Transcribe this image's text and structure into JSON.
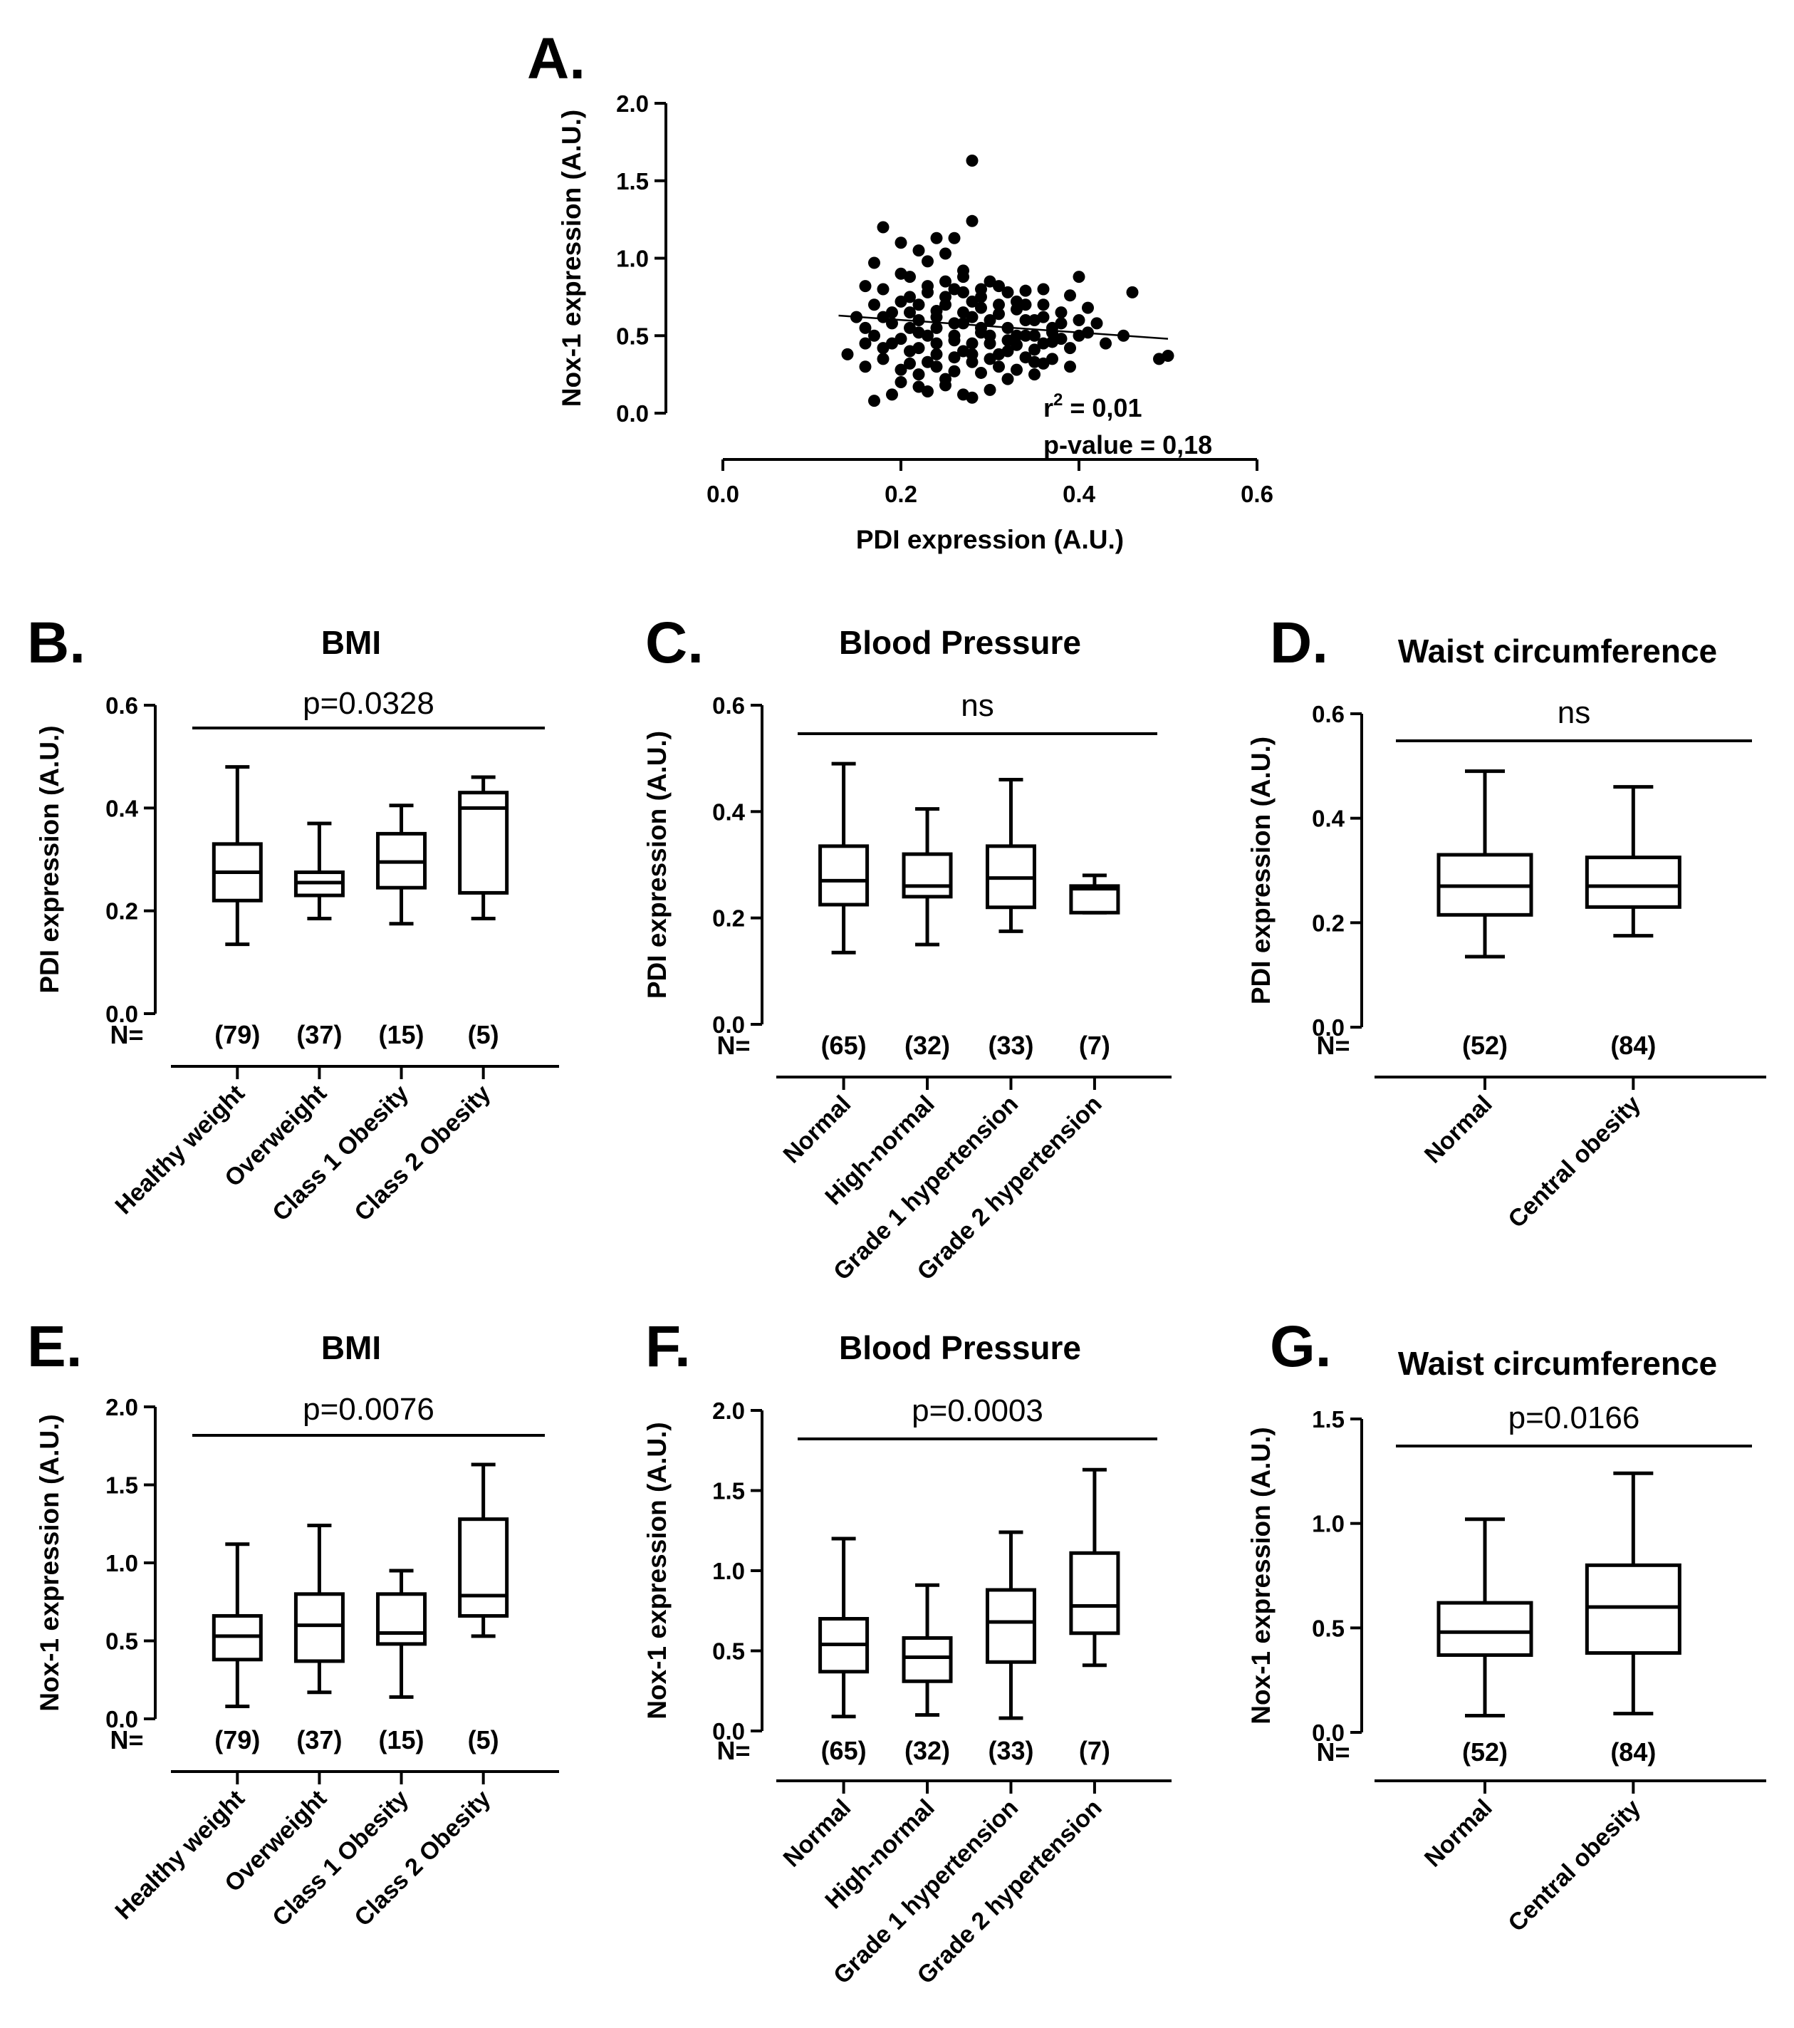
{
  "chart_data": [
    {
      "id": "A",
      "type": "scatter",
      "letter": "A.",
      "xlabel": "PDI expression (A.U.)",
      "ylabel": "Nox-1 expression (A.U.)",
      "xlim": [
        0.0,
        0.6
      ],
      "ylim": [
        0.0,
        2.0
      ],
      "xticks": [
        "0.0",
        "0.2",
        "0.4",
        "0.6"
      ],
      "yticks": [
        "0.0",
        "0.5",
        "1.0",
        "1.5",
        "2.0"
      ],
      "stats": {
        "r2_prefix": "r",
        "r2_sup": "2",
        "r2_rest": " = 0,01",
        "pvalue": "p-value = 0,18"
      },
      "regression": {
        "x": [
          0.13,
          0.5
        ],
        "y": [
          0.63,
          0.48
        ]
      },
      "points": [
        [
          0.28,
          1.63
        ],
        [
          0.28,
          1.24
        ],
        [
          0.18,
          1.2
        ],
        [
          0.2,
          1.1
        ],
        [
          0.24,
          1.13
        ],
        [
          0.26,
          1.13
        ],
        [
          0.22,
          1.05
        ],
        [
          0.17,
          0.97
        ],
        [
          0.25,
          1.03
        ],
        [
          0.23,
          0.98
        ],
        [
          0.2,
          0.9
        ],
        [
          0.27,
          0.92
        ],
        [
          0.3,
          0.85
        ],
        [
          0.4,
          0.88
        ],
        [
          0.46,
          0.78
        ],
        [
          0.16,
          0.82
        ],
        [
          0.18,
          0.8
        ],
        [
          0.21,
          0.75
        ],
        [
          0.23,
          0.78
        ],
        [
          0.26,
          0.8
        ],
        [
          0.29,
          0.75
        ],
        [
          0.31,
          0.82
        ],
        [
          0.34,
          0.79
        ],
        [
          0.36,
          0.8
        ],
        [
          0.39,
          0.76
        ],
        [
          0.15,
          0.62
        ],
        [
          0.17,
          0.7
        ],
        [
          0.19,
          0.65
        ],
        [
          0.2,
          0.72
        ],
        [
          0.22,
          0.6
        ],
        [
          0.24,
          0.66
        ],
        [
          0.25,
          0.7
        ],
        [
          0.27,
          0.58
        ],
        [
          0.28,
          0.72
        ],
        [
          0.3,
          0.6
        ],
        [
          0.32,
          0.55
        ],
        [
          0.33,
          0.67
        ],
        [
          0.35,
          0.5
        ],
        [
          0.36,
          0.62
        ],
        [
          0.37,
          0.55
        ],
        [
          0.38,
          0.48
        ],
        [
          0.4,
          0.6
        ],
        [
          0.41,
          0.52
        ],
        [
          0.42,
          0.58
        ],
        [
          0.17,
          0.5
        ],
        [
          0.19,
          0.45
        ],
        [
          0.21,
          0.55
        ],
        [
          0.22,
          0.42
        ],
        [
          0.23,
          0.5
        ],
        [
          0.24,
          0.38
        ],
        [
          0.26,
          0.47
        ],
        [
          0.27,
          0.4
        ],
        [
          0.29,
          0.52
        ],
        [
          0.3,
          0.45
        ],
        [
          0.31,
          0.38
        ],
        [
          0.33,
          0.44
        ],
        [
          0.34,
          0.36
        ],
        [
          0.35,
          0.41
        ],
        [
          0.37,
          0.46
        ],
        [
          0.39,
          0.42
        ],
        [
          0.14,
          0.38
        ],
        [
          0.16,
          0.3
        ],
        [
          0.18,
          0.35
        ],
        [
          0.2,
          0.28
        ],
        [
          0.21,
          0.32
        ],
        [
          0.22,
          0.25
        ],
        [
          0.24,
          0.3
        ],
        [
          0.25,
          0.22
        ],
        [
          0.26,
          0.27
        ],
        [
          0.28,
          0.33
        ],
        [
          0.29,
          0.26
        ],
        [
          0.31,
          0.3
        ],
        [
          0.32,
          0.22
        ],
        [
          0.33,
          0.28
        ],
        [
          0.35,
          0.25
        ],
        [
          0.36,
          0.32
        ],
        [
          0.2,
          0.2
        ],
        [
          0.22,
          0.17
        ],
        [
          0.23,
          0.14
        ],
        [
          0.25,
          0.18
        ],
        [
          0.27,
          0.12
        ],
        [
          0.28,
          0.1
        ],
        [
          0.3,
          0.15
        ],
        [
          0.19,
          0.12
        ],
        [
          0.17,
          0.08
        ],
        [
          0.49,
          0.35
        ],
        [
          0.5,
          0.37
        ],
        [
          0.45,
          0.5
        ],
        [
          0.43,
          0.45
        ],
        [
          0.41,
          0.68
        ],
        [
          0.38,
          0.65
        ],
        [
          0.36,
          0.7
        ],
        [
          0.34,
          0.6
        ],
        [
          0.33,
          0.72
        ],
        [
          0.31,
          0.64
        ],
        [
          0.28,
          0.62
        ],
        [
          0.26,
          0.58
        ],
        [
          0.24,
          0.55
        ],
        [
          0.21,
          0.65
        ],
        [
          0.19,
          0.58
        ],
        [
          0.16,
          0.55
        ],
        [
          0.18,
          0.62
        ],
        [
          0.22,
          0.7
        ],
        [
          0.25,
          0.85
        ],
        [
          0.27,
          0.78
        ],
        [
          0.29,
          0.68
        ],
        [
          0.31,
          0.7
        ],
        [
          0.34,
          0.5
        ],
        [
          0.36,
          0.45
        ],
        [
          0.38,
          0.58
        ],
        [
          0.39,
          0.3
        ],
        [
          0.37,
          0.35
        ],
        [
          0.35,
          0.33
        ],
        [
          0.32,
          0.4
        ],
        [
          0.3,
          0.35
        ],
        [
          0.28,
          0.38
        ],
        [
          0.26,
          0.36
        ],
        [
          0.24,
          0.45
        ],
        [
          0.23,
          0.33
        ],
        [
          0.21,
          0.4
        ],
        [
          0.2,
          0.48
        ],
        [
          0.18,
          0.42
        ],
        [
          0.16,
          0.45
        ],
        [
          0.27,
          0.65
        ],
        [
          0.29,
          0.55
        ],
        [
          0.33,
          0.5
        ],
        [
          0.26,
          0.5
        ],
        [
          0.24,
          0.62
        ],
        [
          0.22,
          0.52
        ],
        [
          0.28,
          0.45
        ],
        [
          0.3,
          0.5
        ],
        [
          0.32,
          0.47
        ],
        [
          0.35,
          0.6
        ],
        [
          0.37,
          0.52
        ],
        [
          0.4,
          0.5
        ],
        [
          0.21,
          0.88
        ],
        [
          0.23,
          0.82
        ],
        [
          0.25,
          0.75
        ],
        [
          0.27,
          0.88
        ],
        [
          0.29,
          0.8
        ],
        [
          0.32,
          0.78
        ],
        [
          0.34,
          0.7
        ]
      ]
    },
    {
      "id": "B",
      "type": "box",
      "letter": "B.",
      "title": "BMI",
      "ylabel": "PDI expression (A.U.)",
      "ylim": [
        0,
        0.6
      ],
      "yticks": [
        "0.0",
        "0.2",
        "0.4",
        "0.6"
      ],
      "sig": "p=0.0328",
      "n_label": "N=",
      "categories": [
        "Healthy weight",
        "Overweight",
        "Class 1 Obesity",
        "Class 2 Obesity"
      ],
      "n": [
        "(79)",
        "(37)",
        "(15)",
        "(5)"
      ],
      "boxes": [
        {
          "min": 0.135,
          "q1": 0.22,
          "median": 0.275,
          "q3": 0.33,
          "max": 0.48
        },
        {
          "min": 0.185,
          "q1": 0.23,
          "median": 0.255,
          "q3": 0.275,
          "max": 0.37
        },
        {
          "min": 0.175,
          "q1": 0.245,
          "median": 0.295,
          "q3": 0.35,
          "max": 0.405
        },
        {
          "min": 0.185,
          "q1": 0.235,
          "median": 0.4,
          "q3": 0.43,
          "max": 0.46
        }
      ]
    },
    {
      "id": "C",
      "type": "box",
      "letter": "C.",
      "title": "Blood Pressure",
      "ylabel": "PDI expression (A.U.)",
      "ylim": [
        0,
        0.6
      ],
      "yticks": [
        "0.0",
        "0.2",
        "0.4",
        "0.6"
      ],
      "sig": "ns",
      "n_label": "N=",
      "categories": [
        "Normal",
        "High-normal",
        "Grade 1 hypertension",
        "Grade 2 hypertension"
      ],
      "n": [
        "(65)",
        "(32)",
        "(33)",
        "(7)"
      ],
      "boxes": [
        {
          "min": 0.135,
          "q1": 0.225,
          "median": 0.27,
          "q3": 0.335,
          "max": 0.49
        },
        {
          "min": 0.15,
          "q1": 0.24,
          "median": 0.26,
          "q3": 0.32,
          "max": 0.405
        },
        {
          "min": 0.175,
          "q1": 0.22,
          "median": 0.275,
          "q3": 0.335,
          "max": 0.46
        },
        {
          "min": 0.21,
          "q1": 0.21,
          "median": 0.255,
          "q3": 0.26,
          "max": 0.28
        }
      ]
    },
    {
      "id": "D",
      "type": "box",
      "letter": "D.",
      "title": "Waist circumference",
      "ylabel": "PDI expression (A.U.)",
      "ylim": [
        0,
        0.6
      ],
      "yticks": [
        "0.0",
        "0.2",
        "0.4",
        "0.6"
      ],
      "sig": "ns",
      "n_label": "N=",
      "categories": [
        "Normal",
        "Central obesity"
      ],
      "n": [
        "(52)",
        "(84)"
      ],
      "boxes": [
        {
          "min": 0.135,
          "q1": 0.215,
          "median": 0.27,
          "q3": 0.33,
          "max": 0.49
        },
        {
          "min": 0.175,
          "q1": 0.23,
          "median": 0.27,
          "q3": 0.325,
          "max": 0.46
        }
      ]
    },
    {
      "id": "E",
      "type": "box",
      "letter": "E.",
      "title": "BMI",
      "ylabel": "Nox-1 expression (A.U.)",
      "ylim": [
        0,
        2.0
      ],
      "yticks": [
        "0.0",
        "0.5",
        "1.0",
        "1.5",
        "2.0"
      ],
      "sig": "p=0.0076",
      "n_label": "N=",
      "categories": [
        "Healthy weight",
        "Overweight",
        "Class 1 Obesity",
        "Class 2 Obesity"
      ],
      "n": [
        "(79)",
        "(37)",
        "(15)",
        "(5)"
      ],
      "boxes": [
        {
          "min": 0.08,
          "q1": 0.38,
          "median": 0.53,
          "q3": 0.66,
          "max": 1.12
        },
        {
          "min": 0.17,
          "q1": 0.37,
          "median": 0.6,
          "q3": 0.8,
          "max": 1.24
        },
        {
          "min": 0.14,
          "q1": 0.48,
          "median": 0.55,
          "q3": 0.8,
          "max": 0.95
        },
        {
          "min": 0.53,
          "q1": 0.66,
          "median": 0.79,
          "q3": 1.28,
          "max": 1.63
        }
      ]
    },
    {
      "id": "F",
      "type": "box",
      "letter": "F.",
      "title": "Blood Pressure",
      "ylabel": "Nox-1 expression (A.U.)",
      "ylim": [
        0,
        2.0
      ],
      "yticks": [
        "0.0",
        "0.5",
        "1.0",
        "1.5",
        "2.0"
      ],
      "sig": "p=0.0003",
      "n_label": "N=",
      "categories": [
        "Normal",
        "High-normal",
        "Grade 1 hypertension",
        "Grade 2 hypertension"
      ],
      "n": [
        "(65)",
        "(32)",
        "(33)",
        "(7)"
      ],
      "boxes": [
        {
          "min": 0.09,
          "q1": 0.37,
          "median": 0.54,
          "q3": 0.7,
          "max": 1.2
        },
        {
          "min": 0.1,
          "q1": 0.31,
          "median": 0.46,
          "q3": 0.58,
          "max": 0.91
        },
        {
          "min": 0.08,
          "q1": 0.43,
          "median": 0.68,
          "q3": 0.88,
          "max": 1.24
        },
        {
          "min": 0.41,
          "q1": 0.61,
          "median": 0.78,
          "q3": 1.11,
          "max": 1.63
        }
      ]
    },
    {
      "id": "G",
      "type": "box",
      "letter": "G.",
      "title": "Waist circumference",
      "ylabel": "Nox-1 expression (A.U.)",
      "ylim": [
        0,
        1.5
      ],
      "yticks": [
        "0.0",
        "0.5",
        "1.0",
        "1.5"
      ],
      "sig": "p=0.0166",
      "n_label": "N=",
      "categories": [
        "Normal",
        "Central obesity"
      ],
      "n": [
        "(52)",
        "(84)"
      ],
      "boxes": [
        {
          "min": 0.08,
          "q1": 0.37,
          "median": 0.48,
          "q3": 0.62,
          "max": 1.02
        },
        {
          "min": 0.09,
          "q1": 0.38,
          "median": 0.6,
          "q3": 0.8,
          "max": 1.24
        }
      ]
    }
  ]
}
